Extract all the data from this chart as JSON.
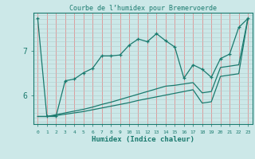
{
  "title": "Courbe de l’humidex pour Bremervoerde",
  "xlabel": "Humidex (Indice chaleur)",
  "bg_color": "#cce8e8",
  "line_color": "#1a7a6e",
  "grid_color_v": "#e8a0a0",
  "grid_color_h": "#b8d8d8",
  "xlim": [
    -0.5,
    23.5
  ],
  "ylim": [
    5.35,
    7.85
  ],
  "yticks": [
    6,
    7
  ],
  "xticks": [
    0,
    1,
    2,
    3,
    4,
    5,
    6,
    7,
    8,
    9,
    10,
    11,
    12,
    13,
    14,
    15,
    16,
    17,
    18,
    19,
    20,
    21,
    22,
    23
  ],
  "line1_x": [
    0,
    1,
    2,
    3,
    4,
    5,
    6,
    7,
    8,
    9,
    10,
    11,
    12,
    13,
    14,
    15,
    16,
    17,
    18,
    19,
    20,
    21,
    22,
    23
  ],
  "line1_y": [
    7.72,
    5.52,
    5.52,
    6.32,
    6.36,
    6.5,
    6.6,
    6.88,
    6.88,
    6.9,
    7.12,
    7.26,
    7.2,
    7.38,
    7.22,
    7.08,
    6.38,
    6.68,
    6.58,
    6.4,
    6.82,
    6.92,
    7.52,
    7.72
  ],
  "line2_x": [
    0,
    1,
    2,
    3,
    4,
    5,
    6,
    7,
    8,
    9,
    10,
    11,
    12,
    13,
    14,
    15,
    16,
    17,
    18,
    19,
    20,
    21,
    22,
    23
  ],
  "line2_y": [
    5.52,
    5.52,
    5.56,
    5.6,
    5.64,
    5.68,
    5.73,
    5.79,
    5.84,
    5.9,
    5.96,
    6.02,
    6.08,
    6.14,
    6.2,
    6.22,
    6.25,
    6.28,
    6.05,
    6.08,
    6.62,
    6.65,
    6.68,
    7.72
  ],
  "line3_x": [
    0,
    1,
    2,
    3,
    4,
    5,
    6,
    7,
    8,
    9,
    10,
    11,
    12,
    13,
    14,
    15,
    16,
    17,
    18,
    19,
    20,
    21,
    22,
    23
  ],
  "line3_y": [
    5.52,
    5.52,
    5.54,
    5.57,
    5.6,
    5.63,
    5.67,
    5.71,
    5.75,
    5.79,
    5.83,
    5.88,
    5.92,
    5.96,
    6.0,
    6.04,
    6.08,
    6.12,
    5.82,
    5.85,
    6.42,
    6.45,
    6.48,
    7.72
  ]
}
